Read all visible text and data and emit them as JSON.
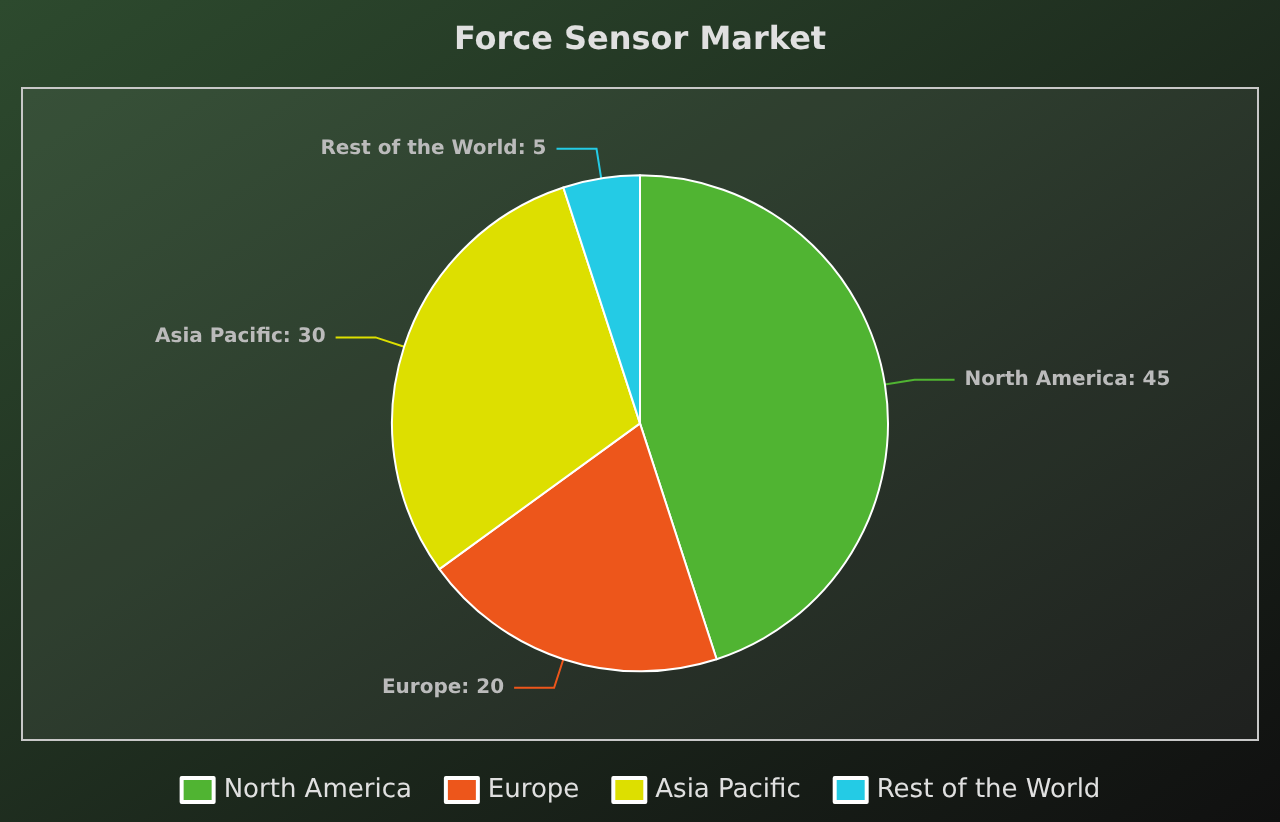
{
  "chart_data": {
    "type": "pie",
    "title": "Force Sensor Market",
    "categories": [
      "North America",
      "Europe",
      "Asia Pacific",
      "Rest of the World"
    ],
    "values": [
      45,
      20,
      30,
      5
    ],
    "value_labels": [
      "North America: 45",
      "Europe: 20",
      "Asia Pacific: 30",
      "Rest of the World: 5"
    ],
    "colors": [
      "#50b432",
      "#ed561b",
      "#dddf00",
      "#24cbe5"
    ],
    "legend": "bottom"
  }
}
